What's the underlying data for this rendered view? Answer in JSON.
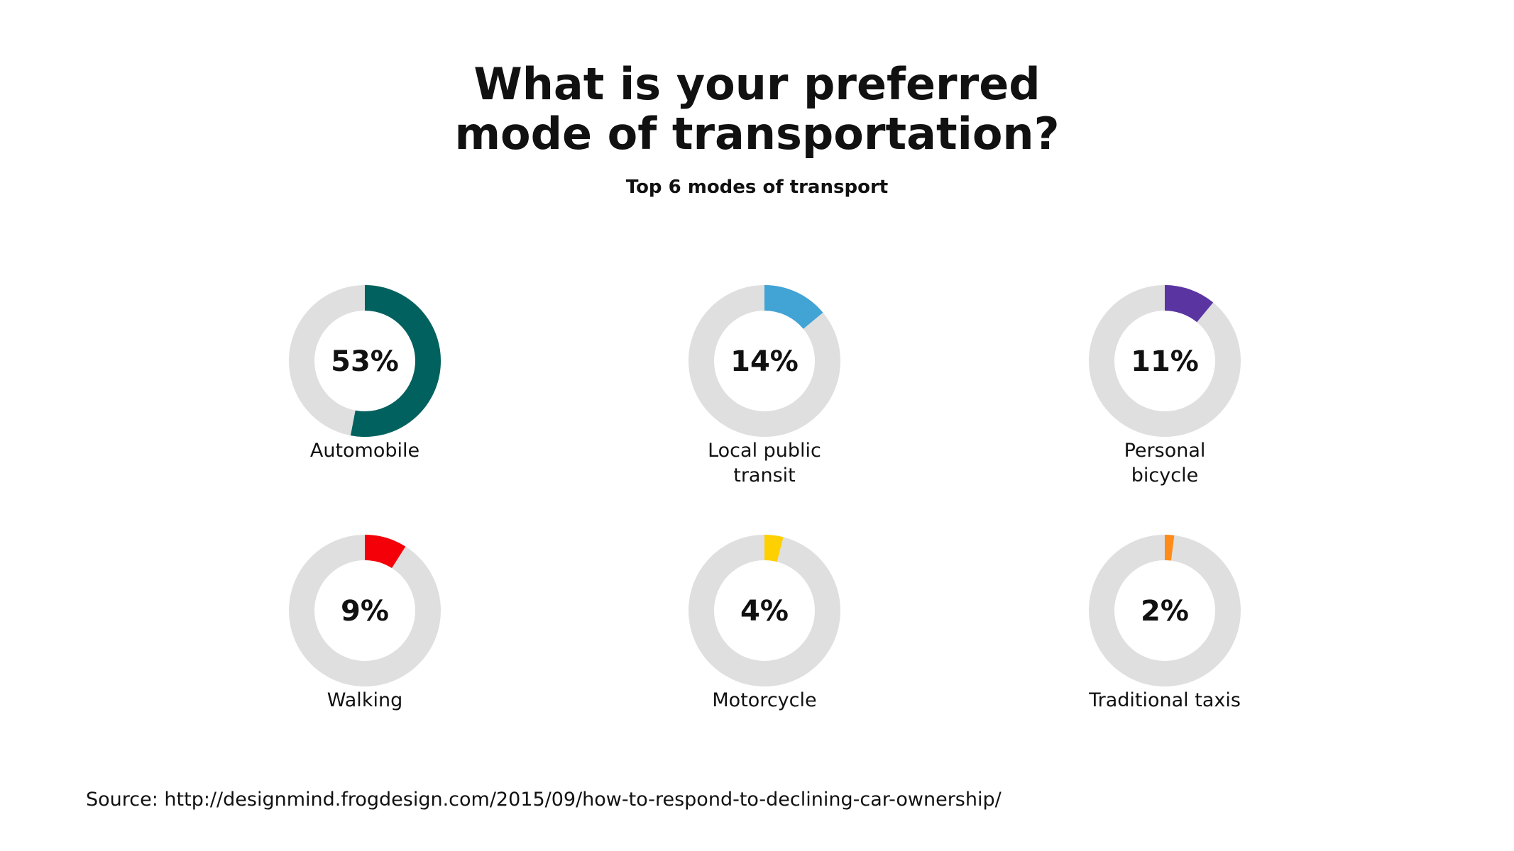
{
  "chart_data": {
    "type": "donut",
    "title": [
      "What is your preferred",
      "mode of transportation?"
    ],
    "subtitle": "Top 6 modes of transport",
    "max": 100,
    "track_color": "#dfdfdf",
    "items": [
      {
        "category": [
          "Automobile"
        ],
        "value": 53,
        "value_label": "53%",
        "color": "#00615f"
      },
      {
        "category": [
          "Local public",
          "transit"
        ],
        "value": 14,
        "value_label": "14%",
        "color": "#42a3d5"
      },
      {
        "category": [
          "Personal",
          "bicycle"
        ],
        "value": 11,
        "value_label": "11%",
        "color": "#5a35a2"
      },
      {
        "category": [
          "Walking"
        ],
        "value": 9,
        "value_label": "9%",
        "color": "#f40009"
      },
      {
        "category": [
          "Motorcycle"
        ],
        "value": 4,
        "value_label": "4%",
        "color": "#ffd000"
      },
      {
        "category": [
          "Traditional taxis"
        ],
        "value": 2,
        "value_label": "2%",
        "color": "#ff8c1a"
      }
    ]
  },
  "source": "Source: http://designmind.frogdesign.com/2015/09/how-to-respond-to-declining-car-ownership/"
}
